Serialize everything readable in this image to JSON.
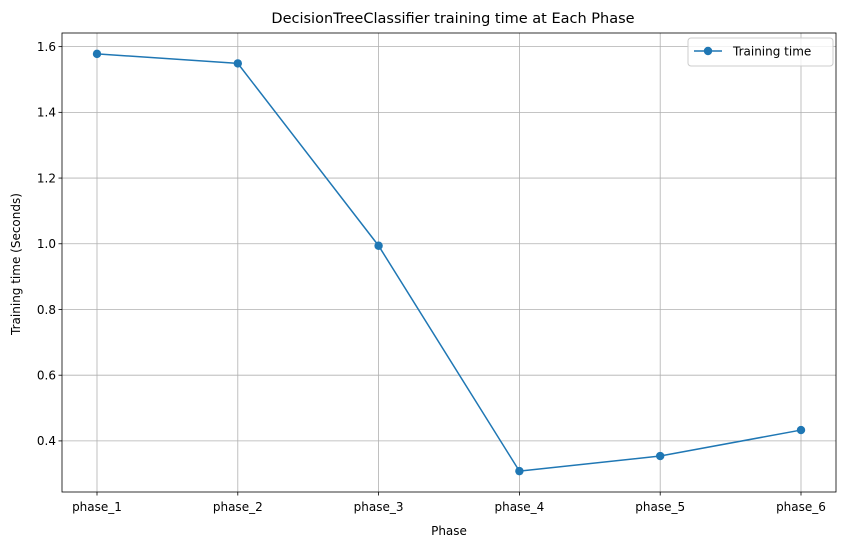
{
  "chart_data": {
    "type": "line",
    "title": "DecisionTreeClassifier training time at Each Phase",
    "xlabel": "Phase",
    "ylabel": "Training time (Seconds)",
    "categories": [
      "phase_1",
      "phase_2",
      "phase_3",
      "phase_4",
      "phase_5",
      "phase_6"
    ],
    "series": [
      {
        "name": "Training time",
        "values": [
          1.578,
          1.549,
          0.994,
          0.308,
          0.354,
          0.433
        ],
        "color": "#1f77b4",
        "marker": "circle"
      }
    ],
    "yticks": [
      0.4,
      0.6,
      0.8,
      1.0,
      1.2,
      1.4,
      1.6
    ],
    "ytick_labels": [
      "0.4",
      "0.6",
      "0.8",
      "1.0",
      "1.2",
      "1.4",
      "1.6"
    ],
    "ylim": [
      0.2445,
      1.6415
    ],
    "grid": true,
    "legend_position": "top-right"
  }
}
